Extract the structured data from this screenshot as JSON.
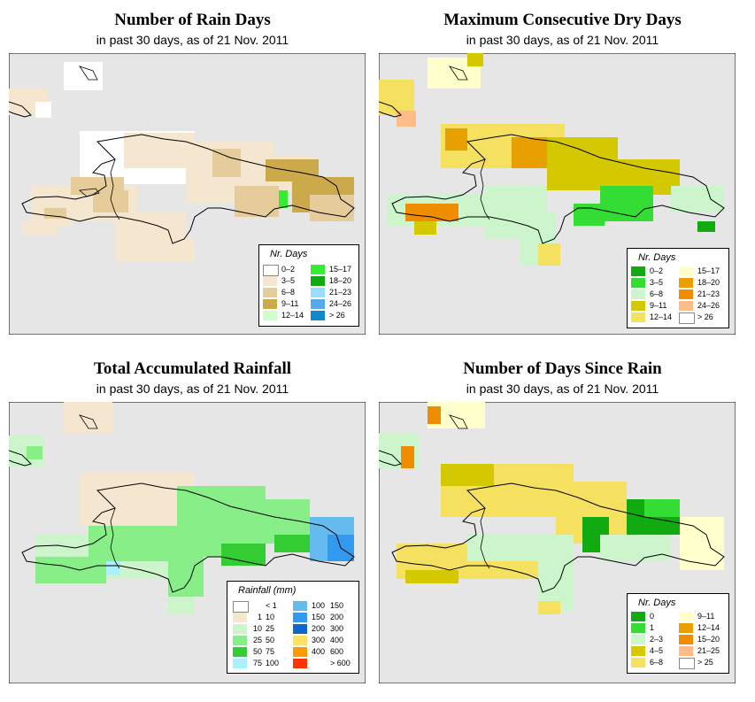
{
  "panels": [
    {
      "id": "rain_days",
      "title": "Number of Rain Days",
      "subtitle": "in past 30 days, as of  21 Nov. 2011",
      "legend": {
        "title": "Nr. Days",
        "items": [
          {
            "label": "0–2",
            "color": "#ffffff"
          },
          {
            "label": "3–5",
            "color": "#f5e7cf"
          },
          {
            "label": "6–8",
            "color": "#e5cc9a"
          },
          {
            "label": "9–11",
            "color": "#ccaa4c"
          },
          {
            "label": "12–14",
            "color": "#ccffcc"
          },
          {
            "label": "15–17",
            "color": "#33ee33"
          },
          {
            "label": "18–20",
            "color": "#11aa11"
          },
          {
            "label": "21–23",
            "color": "#99ddff"
          },
          {
            "label": "24–26",
            "color": "#55aaee"
          },
          {
            "label": "> 26",
            "color": "#1188cc"
          }
        ]
      }
    },
    {
      "id": "max_dry_days",
      "title": "Maximum Consecutive Dry Days",
      "subtitle": "in past 30 days, as of  21 Nov. 2011",
      "legend": {
        "title": "Nr. Days",
        "items": [
          {
            "label": "0–2",
            "color": "#11aa11"
          },
          {
            "label": "3–5",
            "color": "#33dd33"
          },
          {
            "label": "6–8",
            "color": "#ccf5cc"
          },
          {
            "label": "9–11",
            "color": "#d4c800"
          },
          {
            "label": "12–14",
            "color": "#f5e060"
          },
          {
            "label": "15–17",
            "color": "#ffffcc"
          },
          {
            "label": "18–20",
            "color": "#e8a000"
          },
          {
            "label": "21–23",
            "color": "#f08c00"
          },
          {
            "label": "24–26",
            "color": "#ffbb88"
          },
          {
            "label": "> 26",
            "color": "#ffffff"
          }
        ]
      }
    },
    {
      "id": "total_rain",
      "title": "Total Accumulated Rainfall",
      "subtitle": "in past 30 days, as of  21 Nov. 2011",
      "legend": {
        "title": "Rainfall (mm)",
        "items": [
          {
            "lo": "",
            "hi": "< 1",
            "color": "#ffffff"
          },
          {
            "lo": "1",
            "hi": "10",
            "color": "#f5e7cf"
          },
          {
            "lo": "10",
            "hi": "25",
            "color": "#ccf5cc"
          },
          {
            "lo": "25",
            "hi": "50",
            "color": "#88ee88"
          },
          {
            "lo": "50",
            "hi": "75",
            "color": "#33cc33"
          },
          {
            "lo": "75",
            "hi": "100",
            "color": "#aaf0ff"
          },
          {
            "lo": "100",
            "hi": "150",
            "color": "#66bbee"
          },
          {
            "lo": "150",
            "hi": "200",
            "color": "#3399ee"
          },
          {
            "lo": "200",
            "hi": "300",
            "color": "#1166cc"
          },
          {
            "lo": "300",
            "hi": "400",
            "color": "#ffe066"
          },
          {
            "lo": "400",
            "hi": "600",
            "color": "#ff9900"
          },
          {
            "lo": "",
            "hi": "> 600",
            "color": "#ff3300"
          }
        ]
      }
    },
    {
      "id": "days_since_rain",
      "title": "Number of Days Since Rain",
      "subtitle": "in past 30 days, as of  21 Nov. 2011",
      "legend": {
        "title": "Nr. Days",
        "items": [
          {
            "label": "0",
            "color": "#11aa11"
          },
          {
            "label": "1",
            "color": "#33dd33"
          },
          {
            "label": "2–3",
            "color": "#ccf5cc"
          },
          {
            "label": "4–5",
            "color": "#d4c800"
          },
          {
            "label": "6–8",
            "color": "#f5e060"
          },
          {
            "label": "9–11",
            "color": "#ffffcc"
          },
          {
            "label": "12–14",
            "color": "#e8a000"
          },
          {
            "label": "15–20",
            "color": "#f08c00"
          },
          {
            "label": "21–25",
            "color": "#ffbb88"
          },
          {
            "label": "> 25",
            "color": "#ffffff"
          }
        ]
      }
    }
  ]
}
